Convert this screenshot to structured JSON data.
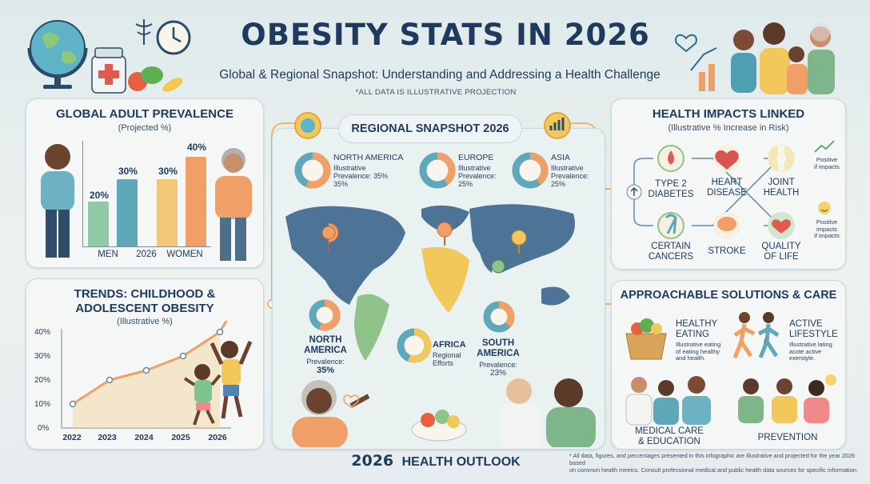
{
  "header": {
    "title": "OBESITY STATS IN 2026",
    "subtitle": "Global & Regional Snapshot: Understanding and Addressing a Health Challenge",
    "note": "*ALL DATA IS ILLUSTRATIVE PROJECTION"
  },
  "global_prevalence": {
    "title": "GLOBAL ADULT PREVALENCE",
    "subtitle": "(Projected %)",
    "x_labels": [
      "MEN",
      "2026",
      "WOMEN"
    ],
    "bars": [
      {
        "label": "20%",
        "value": 20,
        "color": "#8fc9a5"
      },
      {
        "label": "30%",
        "value": 30,
        "color": "#5fa8b9"
      },
      {
        "label": "30%",
        "value": 30,
        "color": "#f3c77a"
      },
      {
        "label": "40%",
        "value": 40,
        "color": "#f0a066"
      }
    ]
  },
  "trends": {
    "title_line1": "TRENDS: CHILDHOOD &",
    "title_line2": "ADOLESCENT OBESITY",
    "subtitle": "(Illustrative %)",
    "y_ticks": [
      "40%",
      "30%",
      "20%",
      "10%",
      "0%"
    ],
    "x_ticks": [
      "2022",
      "2023",
      "2024",
      "2025",
      "2026"
    ],
    "values": [
      10,
      20,
      24,
      30,
      40
    ]
  },
  "regional": {
    "title": "REGIONAL SNAPSHOT 2026",
    "regions": [
      {
        "name": "NORTH AMERICA",
        "line1": "Illustrative",
        "line2": "Prevalence: 35%",
        "line3": "35%",
        "value": 35
      },
      {
        "name": "EUROPE",
        "line1": "Illustrative",
        "line2": "Prevalence:",
        "line3": "25%",
        "value": 25
      },
      {
        "name": "ASIA",
        "line1": "Illustrative",
        "line2": "Prevalence:",
        "line3": "25%",
        "value": 25
      }
    ],
    "bottom_regions": [
      {
        "name_l1": "NORTH",
        "name_l2": "AMERICA",
        "line1": "Prevalence:",
        "line2": "35%"
      },
      {
        "name_l1": "AFRICA",
        "name_l2": "",
        "line1": "Regional",
        "line2": "Efforts"
      },
      {
        "name_l1": "SOUTH",
        "name_l2": "AMERICA",
        "line1": "Prevalence:",
        "line2": "23%"
      }
    ]
  },
  "health_impacts": {
    "title": "HEALTH IMPACTS LINKED",
    "subtitle": "(Illustrative % Increase in Risk)",
    "items": [
      {
        "l1": "TYPE 2",
        "l2": "DIABETES"
      },
      {
        "l1": "HEART",
        "l2": "DISEASE"
      },
      {
        "l1": "JOINT",
        "l2": "HEALTH"
      },
      {
        "l1": "CERTAIN",
        "l2": "CANCERS"
      },
      {
        "l1": "STROKE",
        "l2": ""
      },
      {
        "l1": "QUALITY",
        "l2": "OF LIFE"
      }
    ],
    "side1_l1": "Positive",
    "side1_l2": "if impacts",
    "side2_l1": "Positive",
    "side2_l2": "impacts",
    "side2_l3": "if impacts"
  },
  "solutions": {
    "title": "APPROACHABLE SOLUTIONS & CARE",
    "healthy": {
      "l1": "HEALTHY",
      "l2": "EATING",
      "d1": "Illustrative eating",
      "d2": "of eating healthy",
      "d3": "and health."
    },
    "active": {
      "l1": "ACTIVE",
      "l2": "LIFESTYLE",
      "d1": "Illustrative lating",
      "d2": "acote active",
      "d3": "exerstyle."
    },
    "medical_l1": "MEDICAL CARE",
    "medical_l2": "& EDUCATION",
    "prevention": "PREVENTION"
  },
  "footer": {
    "brand_num": "2026",
    "brand_text": "HEALTH OUTLOOK",
    "disclaimer_1": "* All data, figures, and percentages presented in this infographic are illustrative and projected for the year 2026 based",
    "disclaimer_2": "on common health metrics. Consult professional medical and public health data sources for specific information."
  },
  "colors": {
    "navy": "#1e3a5f",
    "teal": "#5fa8b9",
    "orange": "#f0a066",
    "yellow": "#f3c77a",
    "green": "#8fc9a5"
  }
}
